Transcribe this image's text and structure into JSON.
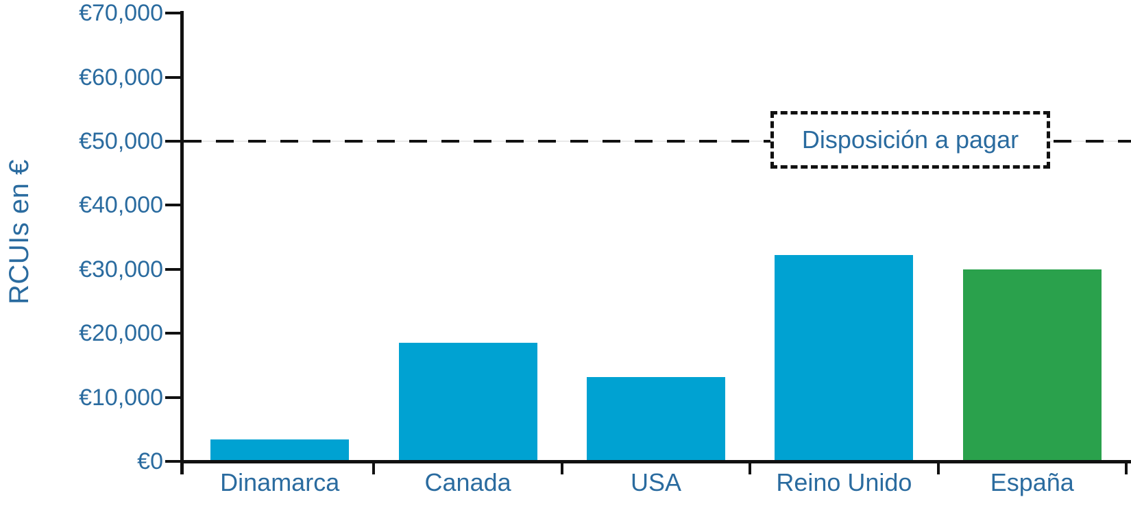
{
  "chart_data": {
    "type": "bar",
    "title": "",
    "categories": [
      "Dinamarca",
      "Canada",
      "USA",
      "Reino Unido",
      "España"
    ],
    "values": [
      3400,
      18500,
      13200,
      32200,
      30000
    ],
    "bar_colors": [
      "#00a2d2",
      "#00a2d2",
      "#00a2d2",
      "#00a2d2",
      "#2aa14c"
    ],
    "xlabel": "",
    "ylabel": "RCUIs en €",
    "ylim": [
      0,
      70000
    ],
    "ytick_step": 10000,
    "ytick_labels": [
      "€0",
      "€10,000",
      "€20,000",
      "€30,000",
      "€40,000",
      "€50,000",
      "€60,000",
      "€70,000"
    ],
    "grid": false,
    "legend": null,
    "threshold_line": {
      "value": 50000,
      "label": "Disposición a pagar",
      "style": "dashed",
      "color": "#111111"
    },
    "colors": {
      "bar_blue": "#00a2d2",
      "bar_green": "#2aa14c",
      "label_text": "#2a6b9f",
      "axis": "#111111"
    }
  }
}
